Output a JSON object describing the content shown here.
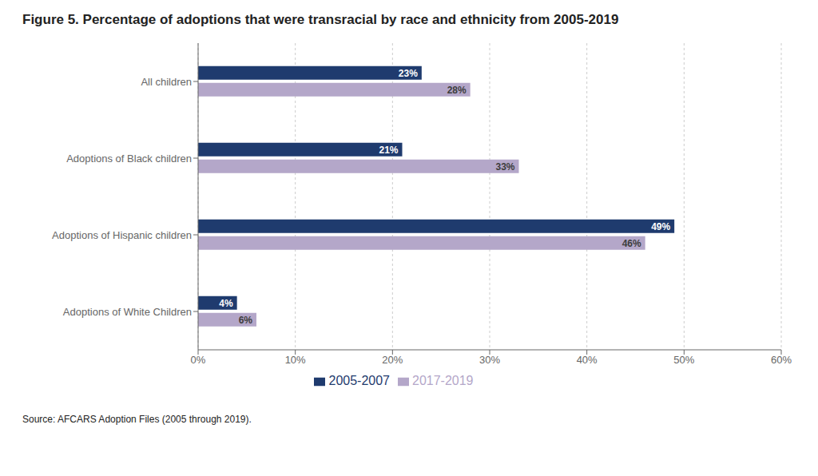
{
  "chart_data": {
    "type": "bar",
    "orientation": "horizontal",
    "title": "Figure 5. Percentage of adoptions that were transracial by race and ethnicity from 2005-2019",
    "categories": [
      "All children",
      "Adoptions of Black children",
      "Adoptions of Hispanic children",
      "Adoptions of White Children"
    ],
    "series": [
      {
        "name": "2005-2007",
        "color": "#1F3B6E",
        "values": [
          23,
          21,
          49,
          4
        ],
        "value_labels": [
          "23%",
          "21%",
          "49%",
          "4%"
        ]
      },
      {
        "name": "2017-2019",
        "color": "#B4A7C9",
        "values": [
          28,
          33,
          46,
          6
        ],
        "value_labels": [
          "28%",
          "33%",
          "46%",
          "6%"
        ]
      }
    ],
    "xlim": [
      0,
      60
    ],
    "xticks": [
      {
        "value": 0,
        "label": "0%"
      },
      {
        "value": 10,
        "label": "10%"
      },
      {
        "value": 20,
        "label": "20%"
      },
      {
        "value": 30,
        "label": "30%"
      },
      {
        "value": 40,
        "label": "40%"
      },
      {
        "value": 50,
        "label": "50%"
      },
      {
        "value": 60,
        "label": "60%"
      }
    ],
    "grid": true,
    "legend": "bottom",
    "data_labels": true,
    "annotations": [
      "Source: AFCARS Adoption Files (2005 through 2019)."
    ]
  }
}
